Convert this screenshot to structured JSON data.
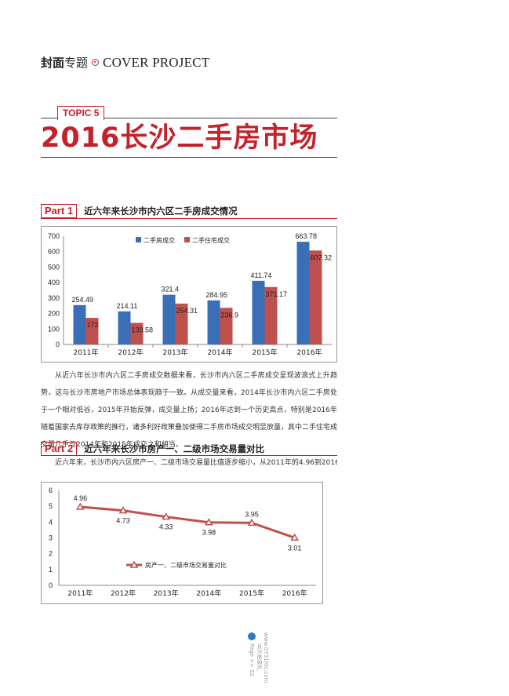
{
  "header": {
    "cn_bold": "封面",
    "cn_normal": "专题",
    "en_title": "COVER PROJECT"
  },
  "topic_tag": "TOPIC 5",
  "main_title": "2016长沙二手房市场",
  "part1": {
    "tag": "Part 1",
    "title": "近六年来长沙市内六区二手房成交情况",
    "paragraph": "从近六年长沙市内六区二手房成交数据来看，长沙市内六区二手房成交呈现波浪式上升趋势，这与长沙市房地产市场总体表现趋于一致。从成交量来看，2014年长沙市内六区二手房处于一个相对低谷，2015年开始反弹，成交量上扬；2016年达到一个历史高点，特别是2016年随着国家去库存政策的推行，诸多利好政策叠加使得二手房市场成交明显放量，其中二手住宅成交量几乎与2014年和2015年成交之和相当。"
  },
  "part2": {
    "tag": "Part 2",
    "title": "近六年来长沙市房产一、二级市场交易量对比",
    "paragraph": "近六年来，长沙市内六区房产一、二级市场交易量比值逐步缩小，从2011年的4.96到2016"
  },
  "footer": {
    "page_label": "Page >> 52",
    "site_cn": "长沙房地产",
    "site_url": "www.0731fdc.com"
  },
  "chart_data": [
    {
      "type": "bar",
      "categories": [
        "2011年",
        "2012年",
        "2013年",
        "2014年",
        "2015年",
        "2016年"
      ],
      "series": [
        {
          "name": "二手房成交",
          "values": [
            254.49,
            214.11,
            321.4,
            284.95,
            411.74,
            663.78
          ],
          "color": "#3a6fb7"
        },
        {
          "name": "二手住宅成交",
          "values": [
            172,
            139.58,
            264.31,
            236.9,
            371.17,
            607.32
          ],
          "color": "#c0504d"
        }
      ],
      "ylim": [
        0,
        700
      ],
      "yticks": [
        0,
        100,
        200,
        300,
        400,
        500,
        600,
        700
      ],
      "legend": "top-center",
      "grid": false
    },
    {
      "type": "line",
      "categories": [
        "2011年",
        "2012年",
        "2013年",
        "2014年",
        "2015年",
        "2016年"
      ],
      "series": [
        {
          "name": "房产一、二级市场交易量对比",
          "values": [
            4.96,
            4.73,
            4.33,
            3.98,
            3.95,
            3.01
          ],
          "color": "#c0504d"
        }
      ],
      "ylim": [
        0,
        6
      ],
      "yticks": [
        0,
        1,
        2,
        3,
        4,
        5,
        6
      ],
      "legend": "bottom-center",
      "grid": false
    }
  ]
}
